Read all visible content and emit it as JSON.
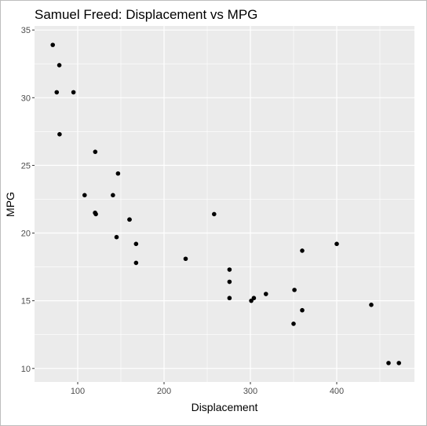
{
  "chart_data": {
    "type": "scatter",
    "title": "Samuel Freed: Displacement vs MPG",
    "xlabel": "Displacement",
    "ylabel": "MPG",
    "xlim": [
      50,
      490
    ],
    "ylim": [
      9,
      35.3
    ],
    "x_ticks": [
      100,
      200,
      300,
      400
    ],
    "y_ticks": [
      10,
      15,
      20,
      25,
      30,
      35
    ],
    "grid": true,
    "background": "#ebebeb",
    "point_color": "#000000",
    "points": [
      {
        "x": 160,
        "y": 21.0
      },
      {
        "x": 160,
        "y": 21.0
      },
      {
        "x": 108,
        "y": 22.8
      },
      {
        "x": 258,
        "y": 21.4
      },
      {
        "x": 360,
        "y": 18.7
      },
      {
        "x": 225,
        "y": 18.1
      },
      {
        "x": 360,
        "y": 14.3
      },
      {
        "x": 146.7,
        "y": 24.4
      },
      {
        "x": 140.8,
        "y": 22.8
      },
      {
        "x": 167.6,
        "y": 19.2
      },
      {
        "x": 167.6,
        "y": 17.8
      },
      {
        "x": 275.8,
        "y": 16.4
      },
      {
        "x": 275.8,
        "y": 17.3
      },
      {
        "x": 275.8,
        "y": 15.2
      },
      {
        "x": 472,
        "y": 10.4
      },
      {
        "x": 460,
        "y": 10.4
      },
      {
        "x": 440,
        "y": 14.7
      },
      {
        "x": 78.7,
        "y": 32.4
      },
      {
        "x": 75.7,
        "y": 30.4
      },
      {
        "x": 71.1,
        "y": 33.9
      },
      {
        "x": 120.1,
        "y": 21.5
      },
      {
        "x": 318,
        "y": 15.5
      },
      {
        "x": 304,
        "y": 15.2
      },
      {
        "x": 350,
        "y": 13.3
      },
      {
        "x": 400,
        "y": 19.2
      },
      {
        "x": 79,
        "y": 27.3
      },
      {
        "x": 120.3,
        "y": 26.0
      },
      {
        "x": 95.1,
        "y": 30.4
      },
      {
        "x": 351,
        "y": 15.8
      },
      {
        "x": 145,
        "y": 19.7
      },
      {
        "x": 301,
        "y": 15.0
      },
      {
        "x": 121,
        "y": 21.4
      }
    ]
  }
}
